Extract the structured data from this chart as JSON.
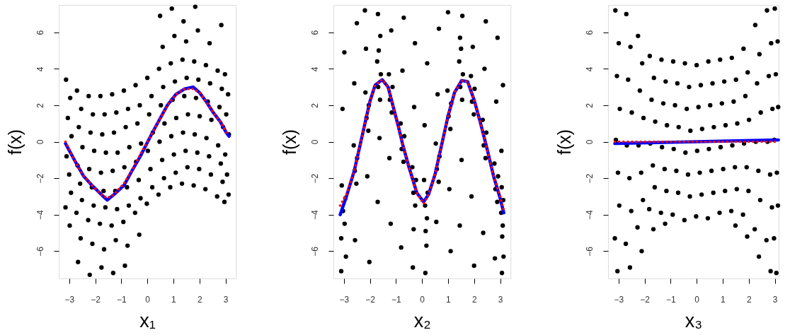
{
  "chart_data": [
    {
      "type": "scatter",
      "xlabel": "x₁",
      "ylabel": "f(x)",
      "xlim": [
        -3.4,
        3.4
      ],
      "ylim": [
        -7.5,
        7.5
      ],
      "xticks": [
        -3,
        -2,
        -1,
        0,
        1,
        2,
        3
      ],
      "yticks": [
        -6,
        -4,
        -2,
        0,
        2,
        4,
        6
      ],
      "series": [
        {
          "type": "scatter",
          "color": "#000000",
          "marker": "circle",
          "x": [
            -3.12,
            -2.96,
            -3.05,
            -2.91,
            -3.1,
            -3.0,
            -2.93,
            -3.14,
            -2.98,
            -2.7,
            -2.54,
            -2.63,
            -2.49,
            -2.68,
            -2.58,
            -2.51,
            -2.72,
            -2.56,
            -2.66,
            -2.25,
            -2.09,
            -2.18,
            -2.04,
            -2.23,
            -2.13,
            -2.06,
            -2.27,
            -2.11,
            -2.21,
            -1.8,
            -1.64,
            -1.73,
            -1.59,
            -1.78,
            -1.68,
            -1.61,
            -1.82,
            -1.66,
            -1.76,
            -1.35,
            -1.19,
            -1.28,
            -1.14,
            -1.33,
            -1.23,
            -1.16,
            -1.37,
            -1.21,
            -1.31,
            -0.9,
            -0.74,
            -0.83,
            -0.69,
            -0.88,
            -0.78,
            -0.71,
            -0.92,
            -0.76,
            -0.86,
            -0.45,
            -0.29,
            -0.38,
            -0.24,
            -0.43,
            -0.33,
            -0.26,
            -0.47,
            -0.31,
            0.0,
            0.16,
            0.07,
            0.21,
            0.02,
            0.12,
            0.19,
            -0.02,
            0.45,
            0.61,
            0.52,
            0.66,
            0.47,
            0.57,
            0.64,
            0.43,
            0.59,
            0.49,
            0.9,
            1.06,
            0.97,
            1.11,
            0.92,
            1.02,
            1.09,
            0.88,
            1.04,
            0.94,
            1.35,
            1.51,
            1.42,
            1.56,
            1.37,
            1.47,
            1.54,
            1.33,
            1.49,
            1.39,
            1.8,
            1.96,
            1.87,
            2.01,
            1.82,
            1.92,
            1.99,
            1.78,
            1.94,
            1.84,
            2.25,
            2.41,
            2.32,
            2.46,
            2.27,
            2.37,
            2.44,
            2.23,
            2.39,
            2.7,
            2.86,
            2.77,
            2.91,
            2.72,
            2.82,
            2.89,
            2.68,
            2.84,
            2.98,
            3.1,
            3.03,
            3.13,
            2.99,
            3.06,
            3.12,
            2.96
          ],
          "values": [
            3.4,
            2.4,
            1.3,
            0.3,
            -0.8,
            -1.8,
            -2.8,
            -3.6,
            -4.6,
            2.8,
            1.8,
            0.8,
            -0.3,
            -1.3,
            -2.3,
            -3.2,
            -3.9,
            -5.3,
            -6.6,
            2.5,
            1.5,
            0.5,
            -0.5,
            -1.5,
            -2.5,
            -3.5,
            -4.3,
            -5.6,
            -7.3,
            2.5,
            1.5,
            0.4,
            -0.6,
            -1.7,
            -2.7,
            -3.6,
            -4.5,
            -5.9,
            -6.9,
            2.6,
            1.6,
            0.5,
            -0.6,
            -1.6,
            -2.7,
            -3.7,
            -4.6,
            -5.4,
            -7.2,
            2.8,
            1.8,
            0.8,
            -0.3,
            -1.4,
            -2.5,
            -3.5,
            -4.4,
            -5.7,
            -6.8,
            3.1,
            2.0,
            1.0,
            -0.1,
            -1.1,
            -2.1,
            -3.1,
            -3.9,
            -5.1,
            3.5,
            2.5,
            1.5,
            0.5,
            -0.5,
            -1.5,
            -2.5,
            -3.4,
            4.0,
            3.0,
            2.0,
            1.0,
            0.0,
            -1.0,
            -2.0,
            -2.9,
            5.2,
            6.9,
            4.3,
            3.3,
            2.3,
            1.3,
            0.3,
            -0.7,
            -1.7,
            -2.5,
            5.8,
            7.3,
            4.5,
            3.5,
            2.5,
            1.5,
            0.5,
            -0.5,
            -1.4,
            -2.3,
            5.5,
            6.6,
            4.4,
            3.4,
            2.4,
            1.4,
            0.4,
            -0.6,
            -1.5,
            -2.4,
            6.1,
            7.4,
            4.2,
            3.2,
            2.2,
            1.2,
            0.2,
            -0.8,
            -1.8,
            -2.6,
            5.4,
            3.9,
            2.9,
            1.9,
            0.8,
            -0.2,
            -1.2,
            -2.2,
            -3.0,
            6.4,
            3.7,
            2.6,
            1.5,
            0.4,
            -0.7,
            -1.8,
            -2.9,
            -3.3
          ]
        },
        {
          "type": "line",
          "color": "#0000ff",
          "line_style": "solid",
          "x": [
            -3.14,
            -2.8,
            -2.44,
            -2.12,
            -1.76,
            -1.54,
            -1.28,
            -0.9,
            -0.59,
            -0.27,
            0.05,
            0.27,
            0.5,
            0.77,
            1.1,
            1.44,
            1.76,
            2.0,
            2.26,
            2.53,
            2.8,
            3.03,
            3.14
          ],
          "values": [
            -0.1,
            -1.0,
            -1.9,
            -2.4,
            -2.9,
            -3.2,
            -2.9,
            -2.4,
            -1.6,
            -0.8,
            0.1,
            0.7,
            1.3,
            2.0,
            2.6,
            2.9,
            3.0,
            2.7,
            2.2,
            1.6,
            1.1,
            0.5,
            0.3
          ]
        },
        {
          "type": "line",
          "color": "#ff0000",
          "line_style": "dotted",
          "x": [
            -3.14,
            -2.8,
            -2.44,
            -2.12,
            -1.76,
            -1.54,
            -1.28,
            -0.9,
            -0.59,
            -0.27,
            0.05,
            0.27,
            0.5,
            0.77,
            1.1,
            1.44,
            1.76,
            2.0,
            2.26,
            2.53,
            2.8,
            3.03,
            3.14
          ],
          "values": [
            0.0,
            -1.0,
            -1.9,
            -2.4,
            -2.9,
            -3.1,
            -2.9,
            -2.3,
            -1.6,
            -0.7,
            0.1,
            0.7,
            1.3,
            2.0,
            2.6,
            2.9,
            2.9,
            2.7,
            2.2,
            1.6,
            1.1,
            0.5,
            0.4
          ]
        }
      ]
    },
    {
      "type": "scatter",
      "xlabel": "x₂",
      "ylabel": "f(x)",
      "xlim": [
        -3.4,
        3.4
      ],
      "ylim": [
        -7.5,
        7.5
      ],
      "xticks": [
        -3,
        -2,
        -1,
        0,
        1,
        2,
        3
      ],
      "yticks": [
        -6,
        -4,
        -2,
        0,
        2,
        4,
        6
      ],
      "series": [
        {
          "type": "scatter",
          "color": "#000000",
          "marker": "circle",
          "x": [
            -3.08,
            -2.94,
            -3.03,
            -2.97,
            -3.1,
            -2.92,
            -3.05,
            -2.98,
            -3.1,
            -2.62,
            -2.49,
            -2.58,
            -2.52,
            -2.6,
            -2.5,
            -2.57,
            -2.17,
            -2.04,
            -2.13,
            -2.06,
            -2.1,
            -2.15,
            -2.02,
            -2.19,
            -1.72,
            -1.58,
            -1.68,
            -1.61,
            -1.66,
            -1.6,
            -1.7,
            -1.63,
            -1.69,
            -1.27,
            -1.13,
            -1.23,
            -1.16,
            -1.2,
            -1.25,
            -1.18,
            -0.82,
            -0.68,
            -0.78,
            -0.71,
            -0.75,
            -0.8,
            -0.7,
            -0.37,
            -0.23,
            -0.33,
            -0.26,
            -0.3,
            -0.35,
            -0.27,
            -0.32,
            0.08,
            0.22,
            0.12,
            0.19,
            0.14,
            0.17,
            0.1,
            0.2,
            0.13,
            0.53,
            0.67,
            0.57,
            0.64,
            0.6,
            0.55,
            0.65,
            0.98,
            1.12,
            1.02,
            1.09,
            1.05,
            1.0,
            1.1,
            1.43,
            1.57,
            1.47,
            1.54,
            1.5,
            1.46,
            1.52,
            1.45,
            1.55,
            1.88,
            2.02,
            1.92,
            1.99,
            1.95,
            1.9,
            2.0,
            2.33,
            2.47,
            2.37,
            2.44,
            2.4,
            2.35,
            2.45,
            2.78,
            2.92,
            2.82,
            2.89,
            2.85,
            2.8,
            2.9,
            3.06,
            3.12,
            3.04,
            3.1,
            3.08,
            3.13,
            3.05,
            3.11,
            3.07
          ],
          "values": [
            -2.4,
            -3.1,
            -3.8,
            -4.5,
            -5.3,
            -6.3,
            1.8,
            4.9,
            -7.1,
            -0.2,
            -0.9,
            -1.6,
            -2.3,
            3.2,
            6.5,
            -5.4,
            2.7,
            2.0,
            1.3,
            0.6,
            -1.9,
            5.1,
            -6.6,
            7.2,
            4.4,
            3.7,
            3.0,
            2.3,
            5.0,
            5.8,
            -3.3,
            0.2,
            7.0,
            3.7,
            3.0,
            2.3,
            1.6,
            -4.5,
            -0.9,
            6.1,
            1.0,
            0.3,
            -0.4,
            -1.1,
            3.9,
            -5.8,
            6.8,
            -1.4,
            -2.1,
            -2.8,
            -3.5,
            1.9,
            -6.9,
            5.4,
            -4.8,
            -2.1,
            -2.8,
            -3.5,
            -4.2,
            -4.9,
            -5.7,
            0.9,
            4.3,
            -7.2,
            -0.1,
            -0.8,
            -1.5,
            -2.2,
            2.6,
            -4.4,
            6.2,
            2.8,
            2.1,
            1.4,
            0.7,
            -2.6,
            7.1,
            -6.0,
            4.4,
            3.7,
            3.0,
            2.3,
            5.1,
            5.7,
            -1.0,
            -4.6,
            6.9,
            3.6,
            2.9,
            2.2,
            1.5,
            5.2,
            -3.0,
            -6.8,
            1.2,
            0.5,
            -0.2,
            -0.9,
            4.0,
            -5.0,
            6.6,
            -1.2,
            -1.9,
            -2.6,
            -3.3,
            2.2,
            -6.4,
            5.7,
            -2.5,
            -3.2,
            -3.9,
            -4.6,
            -5.2,
            -6.3,
            -0.5,
            3.1,
            -7.2
          ]
        },
        {
          "type": "line",
          "color": "#0000ff",
          "line_style": "solid",
          "x": [
            -3.14,
            -2.9,
            -2.6,
            -2.3,
            -2.0,
            -1.8,
            -1.53,
            -1.3,
            -1.12,
            -0.9,
            -0.75,
            -0.5,
            -0.39,
            -0.2,
            0.06,
            0.25,
            0.5,
            0.75,
            1.0,
            1.25,
            1.52,
            1.75,
            2.0,
            2.25,
            2.5,
            2.75,
            3.0,
            3.14
          ],
          "values": [
            -4.0,
            -3.0,
            -1.6,
            0.3,
            2.2,
            3.1,
            3.4,
            3.0,
            2.0,
            0.8,
            -0.1,
            -1.4,
            -1.9,
            -2.8,
            -3.3,
            -2.9,
            -1.8,
            -0.2,
            1.4,
            2.7,
            3.35,
            3.3,
            2.3,
            1.0,
            -0.4,
            -1.9,
            -3.1,
            -3.9
          ]
        },
        {
          "type": "line",
          "color": "#ff0000",
          "line_style": "dotted",
          "x": [
            -3.14,
            -2.9,
            -2.6,
            -2.3,
            -2.0,
            -1.8,
            -1.53,
            -1.3,
            -1.12,
            -0.9,
            -0.75,
            -0.5,
            -0.39,
            -0.2,
            0.06,
            0.25,
            0.5,
            0.75,
            1.0,
            1.25,
            1.52,
            1.75,
            2.0,
            2.25,
            2.5,
            2.75,
            3.0,
            3.14
          ],
          "values": [
            -3.5,
            -2.9,
            -1.6,
            0.3,
            2.2,
            3.1,
            3.4,
            3.0,
            2.0,
            0.8,
            -0.1,
            -1.4,
            -1.9,
            -2.8,
            -3.4,
            -2.9,
            -1.8,
            -0.2,
            1.4,
            2.7,
            3.35,
            3.3,
            2.3,
            1.0,
            -0.4,
            -1.9,
            -3.0,
            -3.8
          ]
        }
      ]
    },
    {
      "type": "scatter",
      "xlabel": "x₃",
      "ylabel": "f(x)",
      "xlim": [
        -3.4,
        3.15
      ],
      "ylim": [
        -7.5,
        7.5
      ],
      "xticks": [
        -3,
        -2,
        -1,
        0,
        1,
        2,
        3
      ],
      "yticks": [
        -6,
        -4,
        -2,
        0,
        2,
        4,
        6
      ],
      "series": [
        {
          "type": "scatter",
          "color": "#000000",
          "marker": "circle",
          "x": [
            -3.12,
            -2.99,
            -3.06,
            -2.95,
            -3.1,
            -3.02,
            -2.97,
            -3.14,
            -3.04,
            -2.7,
            -2.54,
            -2.63,
            -2.49,
            -2.68,
            -2.58,
            -2.51,
            -2.72,
            -2.56,
            -2.25,
            -2.09,
            -2.18,
            -2.04,
            -2.23,
            -2.13,
            -2.06,
            -2.27,
            -2.11,
            -1.8,
            -1.64,
            -1.73,
            -1.59,
            -1.78,
            -1.68,
            -1.61,
            -1.82,
            -1.66,
            -1.35,
            -1.19,
            -1.28,
            -1.14,
            -1.33,
            -1.23,
            -1.16,
            -1.37,
            -1.21,
            -0.9,
            -0.74,
            -0.83,
            -0.69,
            -0.88,
            -0.78,
            -0.71,
            -0.92,
            -0.45,
            -0.29,
            -0.38,
            -0.24,
            -0.43,
            -0.33,
            -0.26,
            -0.47,
            0.0,
            0.16,
            0.07,
            0.21,
            0.02,
            0.12,
            0.19,
            -0.02,
            0.45,
            0.61,
            0.52,
            0.66,
            0.47,
            0.57,
            0.64,
            0.43,
            0.9,
            1.06,
            0.97,
            1.11,
            0.92,
            1.02,
            1.09,
            0.88,
            1.35,
            1.51,
            1.42,
            1.56,
            1.37,
            1.47,
            1.54,
            1.33,
            1.49,
            1.8,
            1.96,
            1.87,
            2.01,
            1.82,
            1.92,
            1.99,
            1.78,
            1.94,
            2.25,
            2.41,
            2.32,
            2.46,
            2.27,
            2.37,
            2.44,
            2.23,
            2.39,
            2.7,
            2.86,
            2.77,
            2.91,
            2.72,
            2.82,
            2.89,
            2.68,
            2.84,
            3.0,
            3.11,
            3.04,
            3.13,
            2.98,
            3.08,
            3.12,
            2.97,
            3.06
          ],
          "values": [
            7.2,
            5.4,
            3.6,
            1.8,
            0.1,
            -1.7,
            -3.5,
            -5.3,
            -7.1,
            7.0,
            5.2,
            3.4,
            1.6,
            -0.2,
            -2.0,
            -3.8,
            -5.6,
            -6.9,
            5.8,
            4.3,
            2.8,
            1.3,
            -0.2,
            -1.7,
            -3.2,
            -4.7,
            -6.0,
            4.7,
            3.5,
            2.3,
            1.1,
            -0.1,
            -1.3,
            -2.5,
            -3.7,
            -4.8,
            4.5,
            3.3,
            2.1,
            0.9,
            -0.3,
            -1.5,
            -2.7,
            -3.9,
            -4.5,
            4.4,
            3.2,
            2.0,
            0.8,
            -0.4,
            -1.6,
            -2.8,
            -4.0,
            4.3,
            3.0,
            1.8,
            0.6,
            -0.6,
            -1.8,
            -3.0,
            -4.3,
            4.2,
            3.1,
            1.9,
            0.7,
            -0.5,
            -1.7,
            -2.9,
            -4.1,
            4.4,
            3.2,
            2.0,
            0.8,
            -0.4,
            -1.6,
            -2.8,
            -4.2,
            4.5,
            3.3,
            2.1,
            0.9,
            -0.3,
            -1.5,
            -2.7,
            -3.9,
            4.6,
            3.4,
            2.2,
            1.0,
            -0.2,
            -1.4,
            -2.6,
            -3.8,
            -4.6,
            5.1,
            3.8,
            2.5,
            1.2,
            -0.1,
            -1.4,
            -2.7,
            -4.0,
            -5.2,
            6.4,
            4.8,
            3.2,
            1.6,
            0.0,
            -1.6,
            -3.2,
            -4.8,
            -6.3,
            7.2,
            5.4,
            3.6,
            1.8,
            0.0,
            -1.8,
            -3.6,
            -5.4,
            -7.1,
            7.3,
            5.5,
            3.7,
            1.9,
            0.1,
            -1.7,
            -3.5,
            -5.3,
            -7.2
          ]
        },
        {
          "type": "line",
          "color": "#0000ff",
          "line_style": "solid",
          "x": [
            -3.14,
            0,
            3.14
          ],
          "values": [
            -0.1,
            0.0,
            0.1
          ]
        },
        {
          "type": "line",
          "color": "#ff0000",
          "line_style": "dotted",
          "x": [
            -3.14,
            0,
            3.14
          ],
          "values": [
            0.0,
            0.0,
            0.0
          ]
        }
      ]
    }
  ]
}
